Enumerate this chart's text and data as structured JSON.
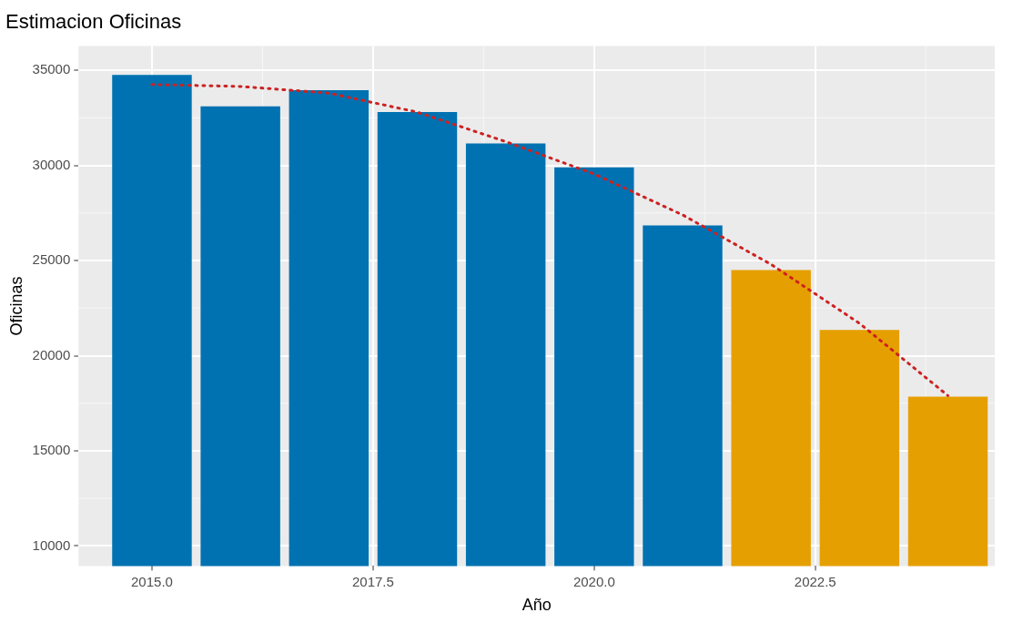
{
  "chart_data": {
    "type": "bar",
    "title": "Estimacion Oficinas",
    "xlabel": "Año",
    "ylabel": "Oficinas",
    "x": [
      2015,
      2016,
      2017,
      2018,
      2019,
      2020,
      2021,
      2022,
      2023,
      2024
    ],
    "values": [
      34750,
      33100,
      33950,
      32800,
      31150,
      29900,
      26850,
      24500,
      21350,
      17850
    ],
    "colors": [
      "#0072b2",
      "#0072b2",
      "#0072b2",
      "#0072b2",
      "#0072b2",
      "#0072b2",
      "#0072b2",
      "#e69f00",
      "#e69f00",
      "#e69f00"
    ],
    "series": [
      {
        "type": "line",
        "color": "#cc2222",
        "line_style": "dotted",
        "marker": "none",
        "x": [
          2015,
          2016,
          2017,
          2018,
          2019,
          2020,
          2021,
          2022,
          2023,
          2024
        ],
        "values": [
          34250,
          34150,
          33800,
          32800,
          31250,
          29550,
          27400,
          24800,
          21700,
          17900
        ]
      }
    ],
    "xlim": [
      2014.17,
      2024.53
    ],
    "ylim": [
      8950,
      36280
    ],
    "xticks": [
      {
        "value": 2015,
        "label": "2015.0"
      },
      {
        "value": 2017.5,
        "label": "2017.5"
      },
      {
        "value": 2020,
        "label": "2020.0"
      },
      {
        "value": 2022.5,
        "label": "2022.5"
      }
    ],
    "yticks": [
      10000,
      15000,
      20000,
      25000,
      30000,
      35000
    ],
    "grid": true,
    "legend": false
  }
}
